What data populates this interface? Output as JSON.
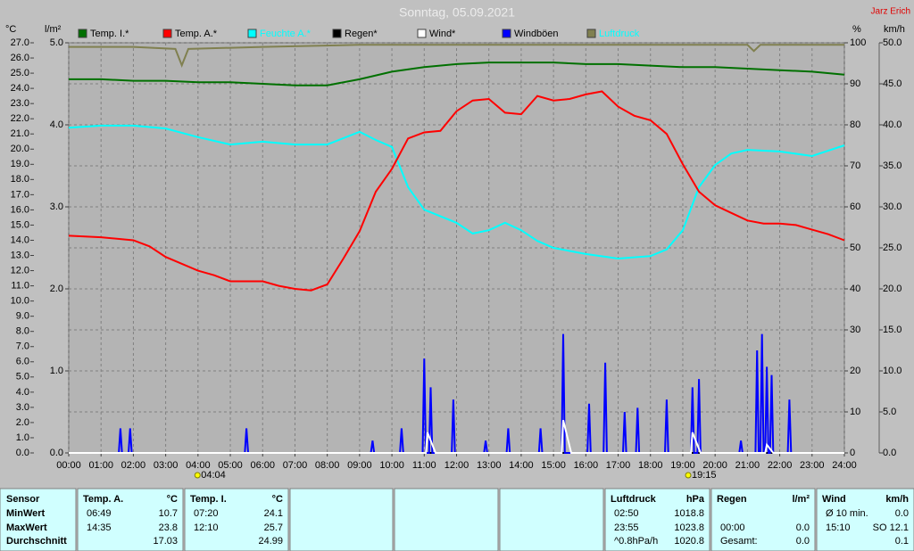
{
  "chart_data": {
    "type": "line",
    "title": "Sonntag, 05.09.2021",
    "author": "Jarz Erich",
    "ylabel": "°C",
    "y3label": "l/m²",
    "y2label": "%",
    "y4label": "km/h",
    "xlim": [
      0,
      24
    ],
    "xticks": [
      {
        "value": 0,
        "label": "00:00"
      },
      {
        "value": 1,
        "label": "01:00"
      },
      {
        "value": 2,
        "label": "02:00"
      },
      {
        "value": 3,
        "label": "03:00"
      },
      {
        "value": 4,
        "label": "04:00"
      },
      {
        "value": 5,
        "label": "05:00"
      },
      {
        "value": 6,
        "label": "06:00"
      },
      {
        "value": 7,
        "label": "07:00"
      },
      {
        "value": 8,
        "label": "08:00"
      },
      {
        "value": 9,
        "label": "09:00"
      },
      {
        "value": 10,
        "label": "10:00"
      },
      {
        "value": 11,
        "label": "11:00"
      },
      {
        "value": 12,
        "label": "12:00"
      },
      {
        "value": 13,
        "label": "13:00"
      },
      {
        "value": 14,
        "label": "14:00"
      },
      {
        "value": 15,
        "label": "15:00"
      },
      {
        "value": 16,
        "label": "16:00"
      },
      {
        "value": 17,
        "label": "17:00"
      },
      {
        "value": 18,
        "label": "18:00"
      },
      {
        "value": 19,
        "label": "19:00"
      },
      {
        "value": 20,
        "label": "20:00"
      },
      {
        "value": 21,
        "label": "21:00"
      },
      {
        "value": 22,
        "label": "22:00"
      },
      {
        "value": 23,
        "label": "23:00"
      },
      {
        "value": 24,
        "label": "24:00"
      }
    ],
    "ylim": [
      0,
      27
    ],
    "yticks": [
      {
        "value": 0,
        "label": "0.0"
      },
      {
        "value": 1,
        "label": "1.0"
      },
      {
        "value": 2,
        "label": "2.0"
      },
      {
        "value": 3,
        "label": "3.0"
      },
      {
        "value": 4,
        "label": "4.0"
      },
      {
        "value": 5,
        "label": "5.0"
      },
      {
        "value": 6,
        "label": "6.0"
      },
      {
        "value": 7,
        "label": "7.0"
      },
      {
        "value": 8,
        "label": "8.0"
      },
      {
        "value": 9,
        "label": "9.0"
      },
      {
        "value": 10,
        "label": "10.0"
      },
      {
        "value": 11,
        "label": "11.0"
      },
      {
        "value": 12,
        "label": "12.0"
      },
      {
        "value": 13,
        "label": "13.0"
      },
      {
        "value": 14,
        "label": "14.0"
      },
      {
        "value": 15,
        "label": "15.0"
      },
      {
        "value": 16,
        "label": "16.0"
      },
      {
        "value": 17,
        "label": "17.0"
      },
      {
        "value": 18,
        "label": "18.0"
      },
      {
        "value": 19,
        "label": "19.0"
      },
      {
        "value": 20,
        "label": "20.0"
      },
      {
        "value": 21,
        "label": "21.0"
      },
      {
        "value": 22,
        "label": "22.0"
      },
      {
        "value": 23,
        "label": "23.0"
      },
      {
        "value": 24,
        "label": "24.0"
      },
      {
        "value": 25,
        "label": "25.0"
      },
      {
        "value": 26,
        "label": "26.0"
      },
      {
        "value": 27,
        "label": "27.0"
      }
    ],
    "y3lim": [
      0,
      5
    ],
    "y3ticks": [
      {
        "value": 0,
        "label": "0.0"
      },
      {
        "value": 1,
        "label": "1.0"
      },
      {
        "value": 2,
        "label": "2.0"
      },
      {
        "value": 3,
        "label": "3.0"
      },
      {
        "value": 4,
        "label": "4.0"
      },
      {
        "value": 5,
        "label": "5.0"
      }
    ],
    "y2lim": [
      0,
      100
    ],
    "y2ticks": [
      0,
      10,
      20,
      30,
      40,
      50,
      60,
      70,
      80,
      90,
      100
    ],
    "y4lim": [
      0,
      50
    ],
    "y4ticks": [
      {
        "value": 0,
        "label": "0.0"
      },
      {
        "value": 5,
        "label": "5.0"
      },
      {
        "value": 10,
        "label": "10.0"
      },
      {
        "value": 15,
        "label": "15.0"
      },
      {
        "value": 20,
        "label": "20.0"
      },
      {
        "value": 25,
        "label": "25.0"
      },
      {
        "value": 30,
        "label": "30.0"
      },
      {
        "value": 35,
        "label": "35.0"
      },
      {
        "value": 40,
        "label": "40.0"
      },
      {
        "value": 45,
        "label": "45.0"
      },
      {
        "value": 50,
        "label": "50.0"
      }
    ],
    "grid": true,
    "annotations": [
      {
        "x": 4.0667,
        "text": "04:04"
      },
      {
        "x": 19.25,
        "text": "19:15"
      }
    ],
    "series": [
      {
        "name": "Temp. I.*",
        "color": "#007000",
        "axis": "y",
        "x": [
          0,
          1,
          2,
          3,
          4,
          5,
          6,
          7,
          8,
          9,
          10,
          11,
          12,
          13,
          14,
          15,
          16,
          17,
          18,
          19,
          20,
          21,
          22,
          23,
          24
        ],
        "values": [
          24.6,
          24.6,
          24.5,
          24.5,
          24.4,
          24.4,
          24.3,
          24.2,
          24.2,
          24.6,
          25.1,
          25.4,
          25.6,
          25.7,
          25.7,
          25.7,
          25.6,
          25.6,
          25.5,
          25.4,
          25.4,
          25.3,
          25.2,
          25.1,
          24.9
        ]
      },
      {
        "name": "Temp. A.*",
        "color": "#ff0000",
        "axis": "y",
        "x": [
          0,
          1,
          2,
          2.5,
          3,
          4,
          4.5,
          5,
          6,
          6.5,
          7,
          7.5,
          8,
          8.5,
          9,
          9.5,
          10,
          10.5,
          11,
          11.5,
          12,
          12.5,
          13,
          13.5,
          14,
          14.5,
          15,
          15.5,
          16,
          16.5,
          17,
          17.5,
          18,
          18.5,
          19,
          19.5,
          20,
          20.5,
          21,
          21.5,
          22,
          22.5,
          23,
          23.5,
          24
        ],
        "values": [
          14.3,
          14.2,
          14.0,
          13.6,
          12.9,
          12.0,
          11.7,
          11.3,
          11.3,
          11.0,
          10.8,
          10.7,
          11.1,
          12.8,
          14.6,
          17.2,
          18.7,
          20.7,
          21.1,
          21.2,
          22.5,
          23.2,
          23.3,
          22.4,
          22.3,
          23.5,
          23.2,
          23.3,
          23.6,
          23.8,
          22.8,
          22.2,
          21.9,
          21.0,
          19.0,
          17.2,
          16.3,
          15.8,
          15.3,
          15.1,
          15.1,
          15.0,
          14.7,
          14.4,
          14.0
        ]
      },
      {
        "name": "Feuchte A.*",
        "color": "#00ffff",
        "axis": "y2",
        "x": [
          0,
          1,
          2,
          3,
          4,
          5,
          6,
          7,
          8,
          9,
          9.5,
          10,
          10.5,
          11,
          12,
          12.5,
          13,
          13.5,
          14,
          14.5,
          15,
          16,
          17,
          18,
          18.5,
          19,
          19.5,
          20,
          20.5,
          21,
          22,
          23,
          24
        ],
        "values": [
          79.3,
          79.8,
          79.8,
          79.1,
          77,
          75.2,
          75.9,
          75.2,
          75.2,
          78.3,
          76.3,
          74.6,
          64.8,
          59.3,
          56.1,
          53.5,
          54.3,
          56.1,
          54.3,
          51.7,
          50,
          48.5,
          47.4,
          48,
          49.6,
          54.3,
          64.8,
          70.2,
          73,
          73.9,
          73.5,
          72.4,
          75
        ]
      },
      {
        "name": "Regen*",
        "color": "#000000",
        "axis": "y3",
        "x": [
          0,
          24
        ],
        "values": [
          0,
          0
        ]
      },
      {
        "name": "Wind*",
        "color": "#ffffff",
        "axis": "y4",
        "x": [
          0,
          11.05,
          11.1,
          11.35,
          15.25,
          15.3,
          15.55,
          19.25,
          19.3,
          19.55,
          21.55,
          21.6,
          21.8,
          24
        ],
        "values": [
          0,
          0,
          2.5,
          0,
          0,
          4,
          0,
          0,
          2.5,
          0,
          0,
          1,
          0,
          0
        ]
      },
      {
        "name": "Windböen",
        "color": "#0000ff",
        "axis": "y4",
        "x": [
          0,
          1.55,
          1.6,
          1.65,
          1.85,
          1.9,
          1.95,
          5.45,
          5.5,
          5.55,
          9.35,
          9.4,
          9.45,
          10.25,
          10.3,
          10.35,
          10.95,
          11.0,
          11.05,
          11.15,
          11.2,
          11.25,
          11.85,
          11.9,
          11.95,
          12.85,
          12.9,
          12.95,
          13.55,
          13.6,
          13.65,
          14.55,
          14.6,
          14.65,
          15.25,
          15.3,
          15.35,
          16.05,
          16.1,
          16.15,
          16.55,
          16.6,
          16.65,
          17.15,
          17.2,
          17.25,
          17.55,
          17.6,
          17.65,
          18.45,
          18.5,
          18.55,
          19.25,
          19.3,
          19.35,
          19.45,
          19.5,
          19.55,
          20.75,
          20.8,
          20.85,
          21.25,
          21.3,
          21.35,
          21.4,
          21.45,
          21.5,
          21.55,
          21.6,
          21.65,
          21.7,
          21.75,
          21.8,
          22.25,
          22.3,
          22.35,
          24
        ],
        "values": [
          0,
          0,
          3,
          0,
          0,
          3,
          0,
          0,
          3,
          0,
          0,
          1.5,
          0,
          0,
          3,
          0,
          0,
          11.5,
          0,
          0,
          8,
          0,
          0,
          6.5,
          0,
          0,
          1.5,
          0,
          0,
          3,
          0,
          0,
          3,
          0,
          0,
          14.5,
          0,
          0,
          6,
          0,
          0,
          11,
          0,
          0,
          5,
          0,
          0,
          5.5,
          0,
          0,
          6.5,
          0,
          0,
          8,
          0,
          0,
          9,
          0,
          0,
          1.5,
          0,
          0,
          12.5,
          0,
          0,
          14.5,
          0,
          0,
          10.5,
          0,
          0,
          9.5,
          0,
          0,
          6.5,
          0,
          0
        ]
      },
      {
        "name": "Luftdruck",
        "color": "#808050",
        "axis": "y2",
        "x": [
          0,
          2,
          3.3,
          3.5,
          3.7,
          6,
          9,
          12,
          15,
          18,
          21,
          21.2,
          21.4,
          24
        ],
        "values": [
          99,
          99,
          98.5,
          94.5,
          98.5,
          99,
          99.5,
          99.5,
          99.5,
          99.5,
          99.5,
          98,
          99.5,
          99.5
        ]
      }
    ]
  },
  "table": {
    "row_labels": [
      "Sensor",
      "MinWert",
      "MaxWert",
      "Durchschnitt"
    ],
    "groups": [
      {
        "title": "Temp. A.",
        "unit": "°C",
        "rows": [
          [
            "06:49",
            "10.7"
          ],
          [
            "14:35",
            "23.8"
          ],
          [
            null,
            "17.03"
          ]
        ]
      },
      {
        "title": "Temp. I.",
        "unit": "°C",
        "rows": [
          [
            "07:20",
            "24.1"
          ],
          [
            "12:10",
            "25.7"
          ],
          [
            null,
            "24.99"
          ]
        ]
      },
      {
        "title": "Luftdruck",
        "unit": "hPa",
        "rows": [
          [
            "02:50",
            "1018.8"
          ],
          [
            "23:55",
            "1023.8"
          ],
          [
            "^0.8hPa/h",
            "1020.8"
          ]
        ]
      },
      {
        "title": "Regen",
        "unit": "l/m²",
        "rows": [
          [
            null,
            null
          ],
          [
            "00:00",
            "0.0"
          ],
          [
            "Gesamt:",
            "0.0"
          ]
        ]
      },
      {
        "title": "Wind",
        "unit": "km/h",
        "rows": [
          [
            "Ø 10 min.",
            "0.0"
          ],
          [
            "15:10",
            "SO 12.1"
          ],
          [
            null,
            "0.1"
          ]
        ]
      }
    ]
  }
}
